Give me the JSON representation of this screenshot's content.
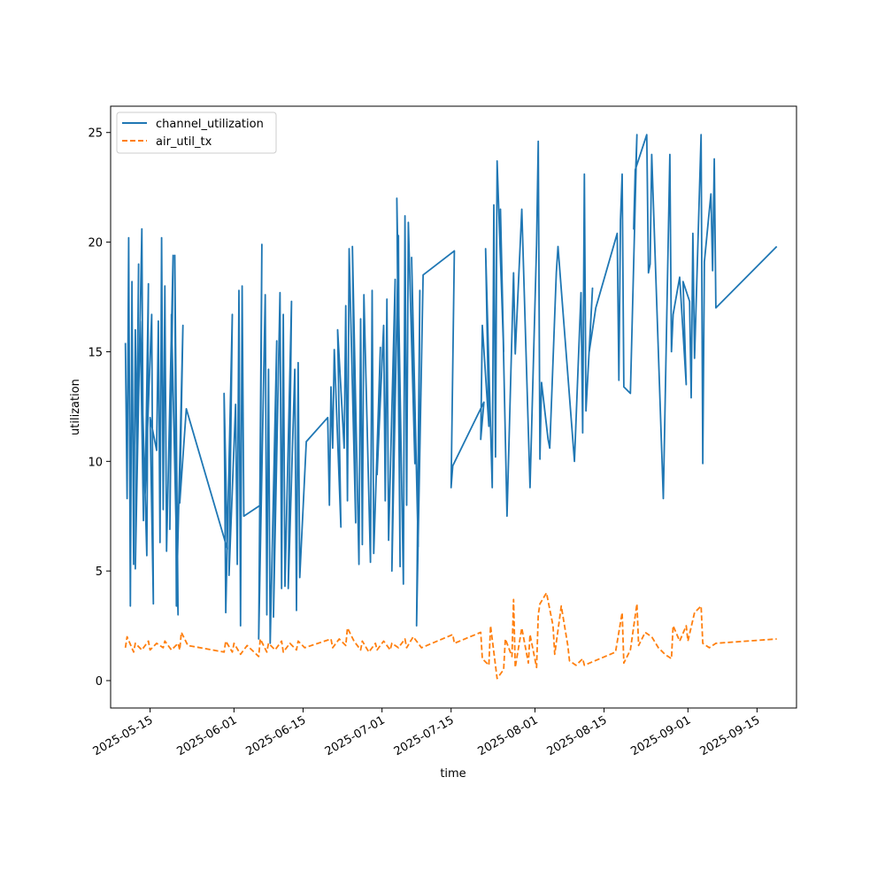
{
  "chart_data": {
    "type": "line",
    "xlabel": "time",
    "ylabel": "utilization",
    "x_axis_type": "date",
    "xlim": [
      "2025-05-07",
      "2025-09-23"
    ],
    "ylim": [
      -1.25,
      26.2
    ],
    "x_ticks": [
      "2025-05-15",
      "2025-06-01",
      "2025-06-15",
      "2025-07-01",
      "2025-07-15",
      "2025-08-01",
      "2025-08-15",
      "2025-09-01",
      "2025-09-15"
    ],
    "y_ticks": [
      0,
      5,
      10,
      15,
      20,
      25
    ],
    "legend_position": "top-left",
    "series": [
      {
        "name": "channel_utilization",
        "color": "#1f77b4",
        "dash": "solid",
        "points": [
          [
            "2025-05-10",
            15.4
          ],
          [
            "2025-05-10",
            8.3
          ],
          [
            "2025-05-10",
            20.2
          ],
          [
            "2025-05-11",
            3.4
          ],
          [
            "2025-05-11",
            18.2
          ],
          [
            "2025-05-11",
            5.3
          ],
          [
            "2025-05-12",
            16.0
          ],
          [
            "2025-05-12",
            9.6
          ],
          [
            "2025-05-12",
            19.0
          ],
          [
            "2025-05-12",
            5.1
          ],
          [
            "2025-05-13",
            20.6
          ],
          [
            "2025-05-13",
            7.3
          ],
          [
            "2025-05-13",
            16.4
          ],
          [
            "2025-05-14",
            5.7
          ],
          [
            "2025-05-14",
            18.1
          ],
          [
            "2025-05-14",
            8.5
          ],
          [
            "2025-05-15",
            16.7
          ],
          [
            "2025-05-15",
            3.5
          ],
          [
            "2025-05-15",
            12.0
          ],
          [
            "2025-05-16",
            10.5
          ],
          [
            "2025-05-16",
            16.4
          ],
          [
            "2025-05-17",
            6.3
          ],
          [
            "2025-05-17",
            20.2
          ],
          [
            "2025-05-17",
            7.8
          ],
          [
            "2025-05-18",
            18.0
          ],
          [
            "2025-05-18",
            5.9
          ],
          [
            "2025-05-19",
            19.4
          ],
          [
            "2025-05-19",
            6.9
          ],
          [
            "2025-05-19",
            16.7
          ],
          [
            "2025-05-20",
            3.0
          ],
          [
            "2025-05-20",
            19.4
          ],
          [
            "2025-05-20",
            3.4
          ],
          [
            "2025-05-21",
            16.2
          ],
          [
            "2025-05-21",
            8.1
          ],
          [
            "2025-05-22",
            12.4
          ],
          [
            "2025-05-30",
            6.0
          ],
          [
            "2025-05-30",
            13.1
          ],
          [
            "2025-05-30",
            3.1
          ],
          [
            "2025-05-31",
            16.7
          ],
          [
            "2025-05-31",
            4.8
          ],
          [
            "2025-06-01",
            12.6
          ],
          [
            "2025-06-01",
            5.3
          ],
          [
            "2025-06-02",
            17.8
          ],
          [
            "2025-06-02",
            2.5
          ],
          [
            "2025-06-02",
            18.0
          ],
          [
            "2025-06-03",
            7.5
          ],
          [
            "2025-06-06",
            8.0
          ],
          [
            "2025-06-06",
            19.9
          ],
          [
            "2025-06-06",
            1.9
          ],
          [
            "2025-06-07",
            17.6
          ],
          [
            "2025-06-07",
            3.0
          ],
          [
            "2025-06-08",
            14.2
          ],
          [
            "2025-06-08",
            1.7
          ],
          [
            "2025-06-09",
            15.5
          ],
          [
            "2025-06-09",
            2.9
          ],
          [
            "2025-06-10",
            17.7
          ],
          [
            "2025-06-10",
            4.2
          ],
          [
            "2025-06-11",
            16.7
          ],
          [
            "2025-06-11",
            4.3
          ],
          [
            "2025-06-12",
            17.3
          ],
          [
            "2025-06-12",
            4.2
          ],
          [
            "2025-06-13",
            14.2
          ],
          [
            "2025-06-13",
            3.2
          ],
          [
            "2025-06-14",
            14.5
          ],
          [
            "2025-06-14",
            4.7
          ],
          [
            "2025-06-15",
            10.9
          ],
          [
            "2025-06-20",
            12.0
          ],
          [
            "2025-06-20",
            8.0
          ],
          [
            "2025-06-20",
            13.4
          ],
          [
            "2025-06-21",
            10.6
          ],
          [
            "2025-06-21",
            15.1
          ],
          [
            "2025-06-22",
            7.0
          ],
          [
            "2025-06-22",
            16.0
          ],
          [
            "2025-06-23",
            10.6
          ],
          [
            "2025-06-23",
            17.1
          ],
          [
            "2025-06-24",
            8.2
          ],
          [
            "2025-06-24",
            19.7
          ],
          [
            "2025-06-25",
            7.2
          ],
          [
            "2025-06-25",
            19.8
          ],
          [
            "2025-06-26",
            5.3
          ],
          [
            "2025-06-26",
            16.5
          ],
          [
            "2025-06-27",
            6.2
          ],
          [
            "2025-06-27",
            17.6
          ],
          [
            "2025-06-28",
            5.4
          ],
          [
            "2025-06-29",
            17.8
          ],
          [
            "2025-06-29",
            5.8
          ],
          [
            "2025-06-30",
            15.2
          ],
          [
            "2025-06-30",
            9.4
          ],
          [
            "2025-07-01",
            16.2
          ],
          [
            "2025-07-01",
            8.2
          ],
          [
            "2025-07-02",
            17.4
          ],
          [
            "2025-07-02",
            6.4
          ],
          [
            "2025-07-03",
            18.3
          ],
          [
            "2025-07-03",
            5.0
          ],
          [
            "2025-07-04",
            20.3
          ],
          [
            "2025-07-04",
            5.2
          ],
          [
            "2025-07-04",
            22.0
          ],
          [
            "2025-07-05",
            4.4
          ],
          [
            "2025-07-05",
            21.2
          ],
          [
            "2025-07-06",
            8.0
          ],
          [
            "2025-07-06",
            20.9
          ],
          [
            "2025-07-07",
            9.9
          ],
          [
            "2025-07-07",
            19.3
          ],
          [
            "2025-07-08",
            6.1
          ],
          [
            "2025-07-08",
            17.8
          ],
          [
            "2025-07-08",
            2.5
          ],
          [
            "2025-07-09",
            18.5
          ],
          [
            "2025-07-15",
            19.6
          ],
          [
            "2025-07-15",
            8.8
          ],
          [
            "2025-07-15",
            9.8
          ],
          [
            "2025-07-21",
            12.7
          ],
          [
            "2025-07-21",
            11.0
          ],
          [
            "2025-07-21",
            16.2
          ],
          [
            "2025-07-22",
            11.6
          ],
          [
            "2025-07-22",
            19.7
          ],
          [
            "2025-07-23",
            8.8
          ],
          [
            "2025-07-23",
            21.7
          ],
          [
            "2025-07-24",
            10.2
          ],
          [
            "2025-07-24",
            23.7
          ],
          [
            "2025-07-25",
            15.0
          ],
          [
            "2025-07-25",
            21.5
          ],
          [
            "2025-07-26",
            7.5
          ],
          [
            "2025-07-27",
            18.6
          ],
          [
            "2025-07-28",
            14.9
          ],
          [
            "2025-07-29",
            21.5
          ],
          [
            "2025-07-30",
            11.4
          ],
          [
            "2025-07-31",
            8.8
          ],
          [
            "2025-08-01",
            19.9
          ],
          [
            "2025-08-01",
            24.6
          ],
          [
            "2025-08-02",
            10.1
          ],
          [
            "2025-08-02",
            13.6
          ],
          [
            "2025-08-03",
            11.0
          ],
          [
            "2025-08-04",
            10.6
          ],
          [
            "2025-08-05",
            18.6
          ],
          [
            "2025-08-05",
            19.8
          ],
          [
            "2025-08-09",
            10.0
          ],
          [
            "2025-08-10",
            17.7
          ],
          [
            "2025-08-10",
            11.3
          ],
          [
            "2025-08-11",
            23.1
          ],
          [
            "2025-08-11",
            12.3
          ],
          [
            "2025-08-12",
            17.9
          ],
          [
            "2025-08-12",
            15.0
          ],
          [
            "2025-08-13",
            17.0
          ],
          [
            "2025-08-17",
            20.4
          ],
          [
            "2025-08-18",
            13.7
          ],
          [
            "2025-08-18",
            21.0
          ],
          [
            "2025-08-18",
            23.1
          ],
          [
            "2025-08-19",
            13.4
          ],
          [
            "2025-08-20",
            13.1
          ],
          [
            "2025-08-21",
            24.9
          ],
          [
            "2025-08-21",
            20.6
          ],
          [
            "2025-08-21",
            23.3
          ],
          [
            "2025-08-23",
            24.9
          ],
          [
            "2025-08-24",
            18.6
          ],
          [
            "2025-08-24",
            19.0
          ],
          [
            "2025-08-24",
            24.0
          ],
          [
            "2025-08-27",
            8.3
          ],
          [
            "2025-08-28",
            24.0
          ],
          [
            "2025-08-28",
            15.0
          ],
          [
            "2025-08-29",
            16.7
          ],
          [
            "2025-08-30",
            18.4
          ],
          [
            "2025-08-31",
            13.5
          ],
          [
            "2025-08-31",
            18.2
          ],
          [
            "2025-09-01",
            17.3
          ],
          [
            "2025-09-01",
            12.9
          ],
          [
            "2025-09-02",
            20.4
          ],
          [
            "2025-09-02",
            14.7
          ],
          [
            "2025-09-03",
            24.9
          ],
          [
            "2025-09-04",
            9.9
          ],
          [
            "2025-09-04",
            19.1
          ],
          [
            "2025-09-05",
            22.2
          ],
          [
            "2025-09-06",
            18.7
          ],
          [
            "2025-09-06",
            23.8
          ],
          [
            "2025-09-06",
            17.0
          ],
          [
            "2025-09-19",
            19.8
          ]
        ]
      },
      {
        "name": "air_util_tx",
        "color": "#ff7f0e",
        "dash": "dashed",
        "points": [
          [
            "2025-05-10",
            1.5
          ],
          [
            "2025-05-10",
            2.0
          ],
          [
            "2025-05-11",
            1.3
          ],
          [
            "2025-05-12",
            1.7
          ],
          [
            "2025-05-13",
            1.4
          ],
          [
            "2025-05-14",
            1.8
          ],
          [
            "2025-05-15",
            1.4
          ],
          [
            "2025-05-16",
            1.7
          ],
          [
            "2025-05-17",
            1.5
          ],
          [
            "2025-05-18",
            1.8
          ],
          [
            "2025-05-19",
            1.4
          ],
          [
            "2025-05-20",
            1.7
          ],
          [
            "2025-05-21",
            1.4
          ],
          [
            "2025-05-21",
            2.2
          ],
          [
            "2025-05-22",
            1.6
          ],
          [
            "2025-05-30",
            1.3
          ],
          [
            "2025-05-30",
            1.8
          ],
          [
            "2025-05-31",
            1.3
          ],
          [
            "2025-06-01",
            1.7
          ],
          [
            "2025-06-02",
            1.2
          ],
          [
            "2025-06-03",
            1.6
          ],
          [
            "2025-06-06",
            1.1
          ],
          [
            "2025-06-06",
            1.9
          ],
          [
            "2025-06-07",
            1.3
          ],
          [
            "2025-06-08",
            1.7
          ],
          [
            "2025-06-09",
            1.4
          ],
          [
            "2025-06-10",
            1.8
          ],
          [
            "2025-06-11",
            1.3
          ],
          [
            "2025-06-12",
            1.7
          ],
          [
            "2025-06-13",
            1.4
          ],
          [
            "2025-06-14",
            1.8
          ],
          [
            "2025-06-15",
            1.5
          ],
          [
            "2025-06-20",
            1.9
          ],
          [
            "2025-06-21",
            1.5
          ],
          [
            "2025-06-22",
            1.9
          ],
          [
            "2025-06-23",
            1.6
          ],
          [
            "2025-06-24",
            2.4
          ],
          [
            "2025-06-25",
            1.8
          ],
          [
            "2025-06-26",
            1.4
          ],
          [
            "2025-06-27",
            1.8
          ],
          [
            "2025-06-28",
            1.3
          ],
          [
            "2025-06-29",
            1.7
          ],
          [
            "2025-06-30",
            1.4
          ],
          [
            "2025-07-01",
            1.8
          ],
          [
            "2025-07-02",
            1.4
          ],
          [
            "2025-07-03",
            1.7
          ],
          [
            "2025-07-04",
            1.5
          ],
          [
            "2025-07-05",
            1.9
          ],
          [
            "2025-07-06",
            1.5
          ],
          [
            "2025-07-07",
            2.0
          ],
          [
            "2025-07-08",
            1.6
          ],
          [
            "2025-07-09",
            1.5
          ],
          [
            "2025-07-15",
            2.1
          ],
          [
            "2025-07-15",
            1.7
          ],
          [
            "2025-07-21",
            2.2
          ],
          [
            "2025-07-21",
            1.0
          ],
          [
            "2025-07-22",
            0.7
          ],
          [
            "2025-07-23",
            2.5
          ],
          [
            "2025-07-24",
            0.1
          ],
          [
            "2025-07-25",
            0.5
          ],
          [
            "2025-07-26",
            1.9
          ],
          [
            "2025-07-27",
            1.1
          ],
          [
            "2025-07-27",
            3.7
          ],
          [
            "2025-07-28",
            0.6
          ],
          [
            "2025-07-29",
            2.4
          ],
          [
            "2025-07-30",
            0.8
          ],
          [
            "2025-07-31",
            2.1
          ],
          [
            "2025-08-01",
            0.6
          ],
          [
            "2025-08-01",
            3.0
          ],
          [
            "2025-08-02",
            3.5
          ],
          [
            "2025-08-03",
            4.0
          ],
          [
            "2025-08-04",
            2.5
          ],
          [
            "2025-08-05",
            1.2
          ],
          [
            "2025-08-06",
            3.4
          ],
          [
            "2025-08-07",
            1.6
          ],
          [
            "2025-08-08",
            0.9
          ],
          [
            "2025-08-09",
            0.7
          ],
          [
            "2025-08-10",
            1.0
          ],
          [
            "2025-08-11",
            0.7
          ],
          [
            "2025-08-17",
            1.3
          ],
          [
            "2025-08-18",
            3.1
          ],
          [
            "2025-08-19",
            0.8
          ],
          [
            "2025-08-20",
            1.4
          ],
          [
            "2025-08-21",
            3.5
          ],
          [
            "2025-08-22",
            1.6
          ],
          [
            "2025-08-23",
            2.2
          ],
          [
            "2025-08-24",
            2.0
          ],
          [
            "2025-08-26",
            1.5
          ],
          [
            "2025-08-27",
            1.2
          ],
          [
            "2025-08-28",
            1.0
          ],
          [
            "2025-08-29",
            2.5
          ],
          [
            "2025-08-30",
            1.8
          ],
          [
            "2025-08-31",
            2.5
          ],
          [
            "2025-09-01",
            1.8
          ],
          [
            "2025-09-02",
            3.1
          ],
          [
            "2025-09-03",
            3.4
          ],
          [
            "2025-09-04",
            1.7
          ],
          [
            "2025-09-05",
            1.5
          ],
          [
            "2025-09-06",
            1.7
          ],
          [
            "2025-09-19",
            1.9
          ]
        ]
      }
    ]
  }
}
